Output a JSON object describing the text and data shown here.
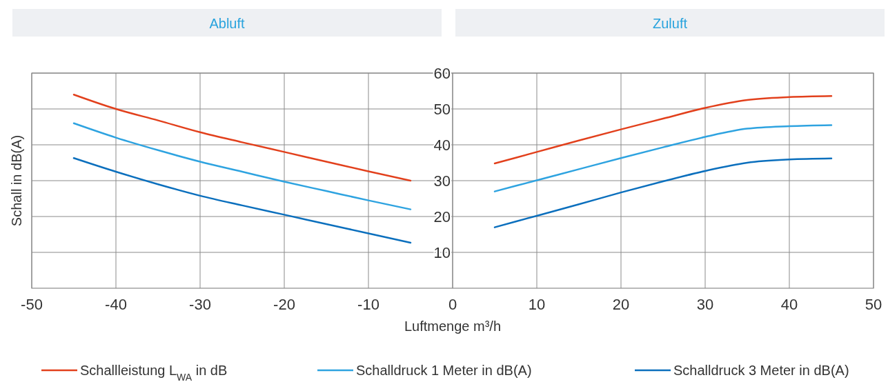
{
  "chart_data": {
    "type": "line",
    "xlabel": "Luftmenge m³/h",
    "ylabel": "Schall in dB(A)",
    "annotations": [
      "Abluft",
      "Zuluft"
    ],
    "x": [
      -45,
      -40,
      -35,
      -30,
      -25,
      -20,
      -15,
      -10,
      -5,
      0,
      5,
      10,
      15,
      20,
      25,
      30,
      35,
      40,
      45
    ],
    "xlim": [
      -50,
      50
    ],
    "xticks": [
      -50,
      -40,
      -30,
      -20,
      -10,
      0,
      10,
      20,
      30,
      40,
      50
    ],
    "ylim": [
      0,
      60
    ],
    "yticks": [
      10,
      20,
      30,
      40,
      50,
      60
    ],
    "grid": true,
    "legend": "bottom",
    "line_style": "solid",
    "marker": "none",
    "series": [
      {
        "name": "Schallleistung L$_{WA}$ in dB",
        "color": "#e2401c",
        "values": [
          54,
          50,
          46.8,
          43.5,
          40.7,
          38,
          35.3,
          32.6,
          30,
          null,
          34.8,
          38,
          41.2,
          44.3,
          47.3,
          50.3,
          52.5,
          53.3,
          53.6
        ]
      },
      {
        "name": "Schalldruck 1 Meter in dB(A)",
        "color": "#2ea3e0",
        "values": [
          46,
          42,
          38.5,
          35.3,
          32.5,
          29.7,
          27.1,
          24.5,
          22,
          null,
          27,
          30.1,
          33.2,
          36.3,
          39.3,
          42.2,
          44.5,
          45.2,
          45.5
        ]
      },
      {
        "name": "Schalldruck 3 Meter in dB(A)",
        "color": "#0b6fbd",
        "values": [
          36.3,
          32.5,
          29,
          25.8,
          23.1,
          20.5,
          17.9,
          15.3,
          12.7,
          null,
          17,
          20.2,
          23.4,
          26.7,
          29.8,
          32.7,
          35,
          35.9,
          36.2
        ]
      }
    ]
  }
}
